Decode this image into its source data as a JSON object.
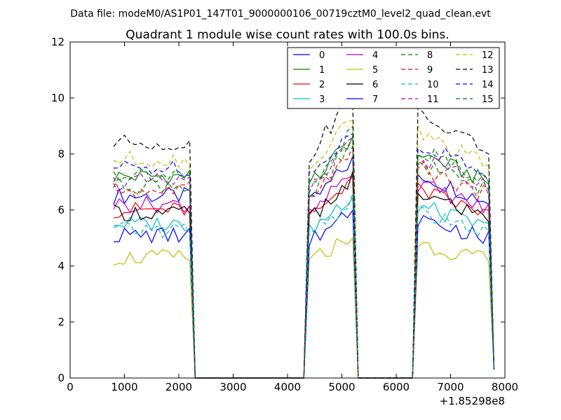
{
  "suptitle": "Data file: modeM0/AS1P01_147T01_9000000106_00719cztM0_level2_quad_clean.evt",
  "chart_data": {
    "type": "line",
    "title": "Quadrant 1 module wise count rates with 100.0s bins.",
    "xlabel": "",
    "ylabel": "",
    "x_offset_label": "+1.85298e8",
    "xlim": [
      0,
      8000
    ],
    "ylim": [
      0,
      12
    ],
    "xticks": [
      0,
      1000,
      2000,
      3000,
      4000,
      5000,
      6000,
      7000,
      8000
    ],
    "yticks": [
      0,
      2,
      4,
      6,
      8,
      10,
      12
    ],
    "legend_position": "top-right",
    "segments": [
      {
        "x_start": 800,
        "x_end": 2200
      },
      {
        "x_start": 4400,
        "x_end": 5200
      },
      {
        "x_start": 6400,
        "x_end": 7700
      }
    ],
    "x": [
      800,
      900,
      1000,
      1100,
      1200,
      1300,
      1400,
      1500,
      1600,
      1700,
      1800,
      1900,
      2000,
      2100,
      2200,
      2300,
      2400,
      2500,
      2600,
      2700,
      2800,
      2900,
      3000,
      3100,
      3200,
      3300,
      3400,
      3500,
      3600,
      3700,
      3800,
      3900,
      4000,
      4100,
      4200,
      4300,
      4400,
      4500,
      4600,
      4700,
      4800,
      4900,
      5000,
      5100,
      5200,
      5300,
      5400,
      5500,
      5600,
      5700,
      5800,
      5900,
      6000,
      6100,
      6200,
      6300,
      6400,
      6500,
      6600,
      6700,
      6800,
      6900,
      7000,
      7100,
      7200,
      7300,
      7400,
      7500,
      7600,
      7700,
      7800
    ],
    "series": [
      {
        "name": "0",
        "color": "#0000ff",
        "dash": "solid",
        "level": 6.5
      },
      {
        "name": "1",
        "color": "#008000",
        "dash": "solid",
        "level": 7.2
      },
      {
        "name": "2",
        "color": "#ff0000",
        "dash": "solid",
        "level": 6.0
      },
      {
        "name": "3",
        "color": "#00bfbf",
        "dash": "solid",
        "level": 5.5
      },
      {
        "name": "4",
        "color": "#bf00bf",
        "dash": "solid",
        "level": 6.2
      },
      {
        "name": "5",
        "color": "#bfbf00",
        "dash": "solid",
        "level": 4.3
      },
      {
        "name": "6",
        "color": "#000000",
        "dash": "solid",
        "level": 5.9
      },
      {
        "name": "7",
        "color": "#0000ff",
        "dash": "solid",
        "level": 5.1
      },
      {
        "name": "8",
        "color": "#008000",
        "dash": "dashed",
        "level": 6.9
      },
      {
        "name": "9",
        "color": "#ff0000",
        "dash": "dashed",
        "level": 6.7
      },
      {
        "name": "10",
        "color": "#00bfbf",
        "dash": "dashed",
        "level": 5.3
      },
      {
        "name": "11",
        "color": "#bf00bf",
        "dash": "dashed",
        "level": 7.0
      },
      {
        "name": "12",
        "color": "#bfbf00",
        "dash": "dashed",
        "level": 7.8
      },
      {
        "name": "13",
        "color": "#000000",
        "dash": "dashed",
        "level": 8.4
      },
      {
        "name": "14",
        "color": "#0000ff",
        "dash": "dashed",
        "level": 7.5
      },
      {
        "name": "15",
        "color": "#008000",
        "dash": "dashed",
        "level": 7.3
      }
    ]
  }
}
